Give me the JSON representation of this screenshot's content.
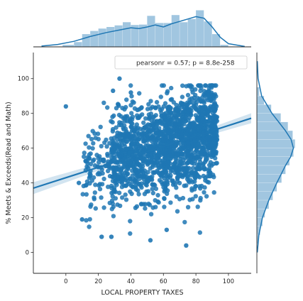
{
  "chart_data": {
    "type": "scatter",
    "xlabel": "LOCAL PROPERTY TAXES",
    "ylabel": "% Meets & Exceeds(Read and Math)",
    "xlim": [
      -20,
      114
    ],
    "ylim": [
      -12,
      115
    ],
    "x_ticks": [
      "0",
      "20",
      "40",
      "60",
      "80",
      "100"
    ],
    "y_ticks": [
      "0",
      "20",
      "40",
      "60",
      "80",
      "100"
    ],
    "x_tick_values": [
      0,
      20,
      40,
      60,
      80,
      100
    ],
    "y_tick_values": [
      0,
      20,
      40,
      60,
      80,
      100
    ],
    "legend": {
      "text": "pearsonr = 0.57; p = 8.8e-258",
      "placement": "top-right"
    },
    "grid": false,
    "color": "#1f77b4",
    "regression": {
      "slope": 0.3,
      "intercept": 43.0,
      "x_range": [
        -20,
        114
      ]
    },
    "outliers": [
      {
        "x": 0,
        "y": 84
      },
      {
        "x": 33,
        "y": 100
      },
      {
        "x": 28,
        "y": 9
      },
      {
        "x": 22,
        "y": 9
      },
      {
        "x": 52,
        "y": 7
      },
      {
        "x": 62,
        "y": 13
      },
      {
        "x": 74,
        "y": 4
      },
      {
        "x": 29,
        "y": 93
      },
      {
        "x": 40,
        "y": 92
      },
      {
        "x": 10,
        "y": 19
      },
      {
        "x": 8,
        "y": 40
      },
      {
        "x": 44,
        "y": 82
      }
    ],
    "scatter_density": {
      "n_points": 1900,
      "x_range": [
        10,
        93
      ],
      "x_concentration": "heavier around 60-90",
      "y_center": "approximately 43 + 0.3 * x",
      "y_spread_sd": 14,
      "y_range": [
        5,
        96
      ]
    },
    "x_marginal_histogram": {
      "bin_edges": [
        -2,
        5,
        10,
        15,
        20,
        25,
        30,
        35,
        40,
        45,
        50,
        55,
        60,
        65,
        70,
        75,
        80,
        85,
        90,
        95,
        100
      ],
      "relative_heights": [
        0.05,
        0.12,
        0.32,
        0.4,
        0.46,
        0.5,
        0.54,
        0.62,
        0.55,
        0.56,
        0.78,
        0.6,
        0.6,
        0.8,
        0.62,
        0.7,
        0.92,
        0.64,
        0.32,
        0.05
      ]
    },
    "x_marginal_kde": [
      [
        -15,
        0.02
      ],
      [
        -5,
        0.06
      ],
      [
        5,
        0.14
      ],
      [
        15,
        0.26
      ],
      [
        25,
        0.36
      ],
      [
        35,
        0.44
      ],
      [
        40,
        0.48
      ],
      [
        45,
        0.46
      ],
      [
        50,
        0.5
      ],
      [
        55,
        0.55
      ],
      [
        60,
        0.5
      ],
      [
        65,
        0.58
      ],
      [
        70,
        0.64
      ],
      [
        75,
        0.7
      ],
      [
        80,
        0.76
      ],
      [
        85,
        0.72
      ],
      [
        90,
        0.5
      ],
      [
        95,
        0.24
      ],
      [
        100,
        0.08
      ],
      [
        110,
        0.01
      ]
    ],
    "y_marginal_histogram": {
      "bin_edges": [
        5,
        10,
        15,
        20,
        25,
        30,
        35,
        40,
        45,
        50,
        55,
        60,
        65,
        70,
        75,
        80,
        85,
        90,
        95
      ],
      "relative_heights": [
        0.04,
        0.08,
        0.14,
        0.2,
        0.3,
        0.4,
        0.5,
        0.62,
        0.72,
        0.82,
        0.92,
        0.96,
        0.9,
        0.78,
        0.6,
        0.36,
        0.18,
        0.06
      ]
    },
    "y_marginal_kde": [
      [
        0,
        0.01
      ],
      [
        10,
        0.05
      ],
      [
        20,
        0.14
      ],
      [
        30,
        0.3
      ],
      [
        40,
        0.5
      ],
      [
        50,
        0.72
      ],
      [
        55,
        0.85
      ],
      [
        60,
        0.92
      ],
      [
        65,
        0.86
      ],
      [
        70,
        0.72
      ],
      [
        80,
        0.38
      ],
      [
        90,
        0.12
      ],
      [
        100,
        0.03
      ],
      [
        110,
        0.01
      ]
    ]
  }
}
